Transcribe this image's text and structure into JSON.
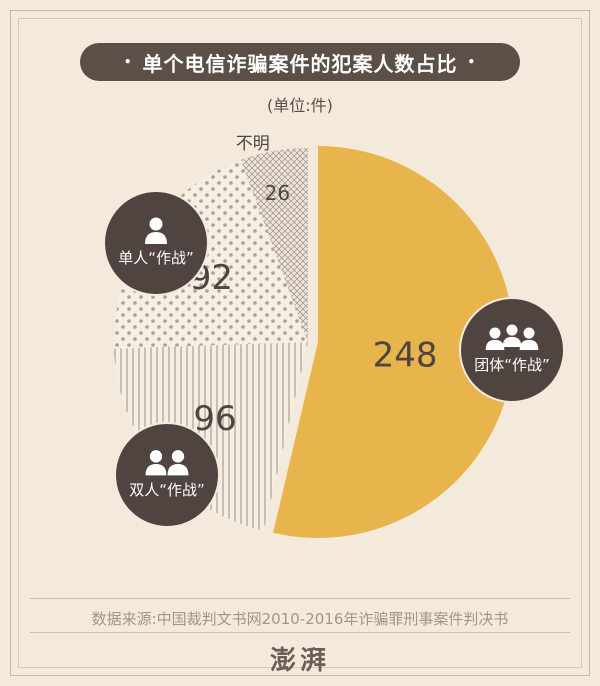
{
  "title": "单个电信诈骗案件的犯案人数占比",
  "title_dot": "•",
  "unit": "(单位:件)",
  "source": "数据来源:中国裁判文书网2010-2016年诈骗罪刑事案件判决书",
  "logo_text": "澎湃",
  "colors": {
    "background": "#f4eadc",
    "group": "#e8b54c",
    "pattern_fg": "#9a8f86",
    "badge": "#4f4440"
  },
  "chart_data": {
    "type": "pie",
    "title": "单个电信诈骗案件的犯案人数占比",
    "unit": "(单位:件)",
    "slices": [
      {
        "label": "团体“作战”",
        "value": 248,
        "color": "#e8b54c",
        "pattern": "solid",
        "icon": "group-three-people-icon"
      },
      {
        "label": "双人“作战”",
        "value": 96,
        "color": "#9a8f86",
        "pattern": "vertical-lines",
        "icon": "two-people-icon"
      },
      {
        "label": "单人“作战”",
        "value": 92,
        "color": "#9a8f86",
        "pattern": "dots",
        "icon": "single-person-icon"
      },
      {
        "label": "不明",
        "value": 26,
        "color": "#9a8f86",
        "pattern": "crosshatch",
        "icon": ""
      }
    ]
  }
}
